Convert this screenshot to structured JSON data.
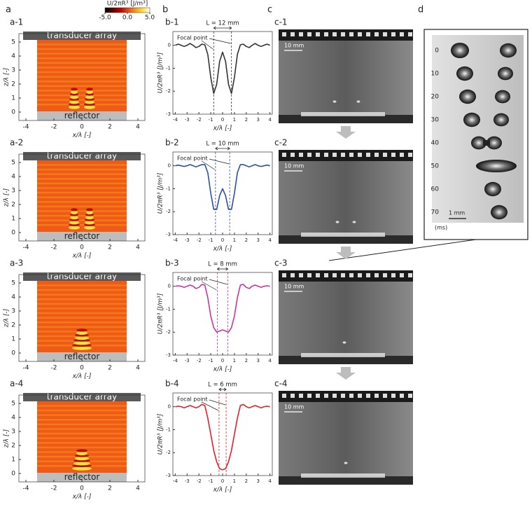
{
  "panel_letters": [
    "a",
    "b",
    "c",
    "d"
  ],
  "colorbar": {
    "label": "U/2πR³ [J/m³]",
    "lim": [
      -5,
      5
    ],
    "ticks": [
      {
        "value": -5,
        "label": "-5.0"
      },
      {
        "value": 0,
        "label": "0.0"
      },
      {
        "value": 5,
        "label": "5.0"
      }
    ]
  },
  "field_maps": [
    {
      "label": "a-1",
      "top_label": "transducer array",
      "bottom_label": "reflector",
      "xlabel": "x/λ [-]",
      "ylabel": "z/λ [-]",
      "xlim": [
        -4.5,
        4.5
      ],
      "ylim": [
        -0.6,
        5.6
      ],
      "xticks": [
        -4,
        -2,
        0,
        2,
        4
      ],
      "yticks": [
        0,
        1,
        2,
        3,
        4,
        5
      ]
    },
    {
      "label": "a-2",
      "top_label": "transducer array",
      "bottom_label": "reflector",
      "xlabel": "x/λ [-]",
      "ylabel": "z/λ [-]",
      "xlim": [
        -4.5,
        4.5
      ],
      "ylim": [
        -0.6,
        5.6
      ],
      "xticks": [
        -4,
        -2,
        0,
        2,
        4
      ],
      "yticks": [
        0,
        1,
        2,
        3,
        4,
        5
      ]
    },
    {
      "label": "a-3",
      "top_label": "transducer array",
      "bottom_label": "reflector",
      "xlabel": "x/λ [-]",
      "ylabel": "z/λ [-]",
      "xlim": [
        -4.5,
        4.5
      ],
      "ylim": [
        -0.6,
        5.6
      ],
      "xticks": [
        -4,
        -2,
        0,
        2,
        4
      ],
      "yticks": [
        0,
        1,
        2,
        3,
        4,
        5
      ]
    },
    {
      "label": "a-4",
      "top_label": "transducer array",
      "bottom_label": "reflector",
      "xlabel": "x/λ [-]",
      "ylabel": "z/λ [-]",
      "xlim": [
        -4.5,
        4.5
      ],
      "ylim": [
        -0.6,
        5.6
      ],
      "xticks": [
        -4,
        -2,
        0,
        2,
        4
      ],
      "yticks": [
        0,
        1,
        2,
        3,
        4,
        5
      ]
    }
  ],
  "chart_data": [
    {
      "type": "line",
      "label": "b-1",
      "xlabel": "x/λ [-]",
      "ylabel": "U/2πR³ [J/m³]",
      "length_label": "L = 12 mm",
      "focal_label": "Focal point",
      "focal_lines": [
        -0.75,
        0.75
      ],
      "color": "#333333",
      "x": [
        -4,
        -3.75,
        -3.5,
        -3.25,
        -3,
        -2.75,
        -2.5,
        -2.25,
        -2,
        -1.75,
        -1.5,
        -1.25,
        -1,
        -0.75,
        -0.5,
        -0.25,
        0,
        0.25,
        0.5,
        0.75,
        1,
        1.25,
        1.5,
        1.75,
        2,
        2.25,
        2.5,
        2.75,
        3,
        3.25,
        3.5,
        3.75,
        4
      ],
      "values": [
        0,
        0.05,
        0,
        -0.05,
        0,
        0.08,
        0,
        -0.1,
        -0.05,
        0.05,
        0.02,
        -0.4,
        -1.4,
        -2.1,
        -1.7,
        -0.7,
        -0.3,
        -0.7,
        -1.7,
        -2.1,
        -1.4,
        -0.4,
        0.02,
        0.05,
        -0.05,
        -0.1,
        0,
        0.08,
        0,
        -0.05,
        0,
        0.05,
        0
      ],
      "xlim": [
        -4.2,
        4.2
      ],
      "ylim": [
        -3,
        0.6
      ],
      "xticks": [
        -4,
        -3,
        -2,
        -1,
        0,
        1,
        2,
        3,
        4
      ],
      "yticks": [
        0,
        -1,
        -2,
        -3
      ]
    },
    {
      "type": "line",
      "label": "b-2",
      "xlabel": "x/λ [-]",
      "ylabel": "U/2πR³ [J/m³]",
      "length_label": "L = 10 mm",
      "focal_label": "Focal point",
      "focal_lines": [
        -0.6,
        0.6
      ],
      "color": "#2e4fa0",
      "x": [
        -4,
        -3.75,
        -3.5,
        -3.25,
        -3,
        -2.75,
        -2.5,
        -2.25,
        -2,
        -1.75,
        -1.5,
        -1.25,
        -1,
        -0.75,
        -0.5,
        -0.25,
        0,
        0.25,
        0.5,
        0.75,
        1,
        1.25,
        1.5,
        1.75,
        2,
        2.25,
        2.5,
        2.75,
        3,
        3.25,
        3.5,
        3.75,
        4
      ],
      "values": [
        0,
        0.03,
        0,
        -0.03,
        0,
        0.05,
        0,
        -0.05,
        0,
        0.05,
        0.05,
        -0.3,
        -1.2,
        -1.9,
        -1.9,
        -1.3,
        -1,
        -1.3,
        -1.9,
        -1.9,
        -1.2,
        -0.3,
        0.05,
        0.05,
        0,
        -0.05,
        0,
        0.05,
        0,
        -0.03,
        0,
        0.03,
        0
      ],
      "xlim": [
        -4.2,
        4.2
      ],
      "ylim": [
        -3,
        0.6
      ],
      "xticks": [
        -4,
        -3,
        -2,
        -1,
        0,
        1,
        2,
        3,
        4
      ],
      "yticks": [
        0,
        -1,
        -2,
        -3
      ]
    },
    {
      "type": "line",
      "label": "b-3",
      "xlabel": "x/λ [-]",
      "ylabel": "U/2πR³ [J/m³]",
      "length_label": "L = 8 mm",
      "focal_label": "Focal point",
      "focal_lines": [
        -0.45,
        0.45
      ],
      "color": "#cc3399",
      "x": [
        -4,
        -3.75,
        -3.5,
        -3.25,
        -3,
        -2.75,
        -2.5,
        -2.25,
        -2,
        -1.75,
        -1.5,
        -1.25,
        -1,
        -0.75,
        -0.5,
        -0.25,
        0,
        0.25,
        0.5,
        0.75,
        1,
        1.25,
        1.5,
        1.75,
        2,
        2.25,
        2.5,
        2.75,
        3,
        3.25,
        3.5,
        3.75,
        4
      ],
      "values": [
        0,
        0.02,
        0,
        -0.05,
        0,
        0.05,
        0,
        -0.1,
        -0.05,
        0.08,
        0.05,
        -0.5,
        -1.3,
        -1.8,
        -2,
        -1.95,
        -1.9,
        -1.95,
        -2,
        -1.8,
        -1.3,
        -0.5,
        0.05,
        0.08,
        -0.05,
        -0.1,
        0,
        0.05,
        0,
        -0.05,
        0,
        0.02,
        0
      ],
      "xlim": [
        -4.2,
        4.2
      ],
      "ylim": [
        -3,
        0.6
      ],
      "xticks": [
        -4,
        -3,
        -2,
        -1,
        0,
        1,
        2,
        3,
        4
      ],
      "yticks": [
        0,
        -1,
        -2,
        -3
      ]
    },
    {
      "type": "line",
      "label": "b-4",
      "xlabel": "x/λ [-]",
      "ylabel": "U/2πR³ [J/m³]",
      "length_label": "L = 6 mm",
      "focal_label": "Focal point",
      "focal_lines": [
        -0.3,
        0.3
      ],
      "color": "#e0202a",
      "x": [
        -4,
        -3.75,
        -3.5,
        -3.25,
        -3,
        -2.75,
        -2.5,
        -2.25,
        -2,
        -1.75,
        -1.5,
        -1.25,
        -1,
        -0.75,
        -0.5,
        -0.25,
        0,
        0.25,
        0.5,
        0.75,
        1,
        1.25,
        1.5,
        1.75,
        2,
        2.25,
        2.5,
        2.75,
        3,
        3.25,
        3.5,
        3.75,
        4
      ],
      "values": [
        0,
        0.02,
        0,
        -0.05,
        0,
        0.05,
        0,
        -0.05,
        0,
        0.1,
        0.05,
        -0.5,
        -1.2,
        -1.9,
        -2.4,
        -2.7,
        -2.75,
        -2.7,
        -2.4,
        -1.9,
        -1.2,
        -0.5,
        0.05,
        0.1,
        0,
        -0.05,
        0,
        0.05,
        0,
        -0.05,
        0,
        0.02,
        0
      ],
      "xlim": [
        -4.2,
        4.2
      ],
      "ylim": [
        -3,
        0.6
      ],
      "xticks": [
        -4,
        -3,
        -2,
        -1,
        0,
        1,
        2,
        3,
        4
      ],
      "yticks": [
        0,
        -1,
        -2,
        -3
      ]
    }
  ],
  "photos": [
    {
      "label": "c-1",
      "scale": "10 mm"
    },
    {
      "label": "c-2",
      "scale": "10 mm"
    },
    {
      "label": "c-3",
      "scale": "10 mm"
    },
    {
      "label": "c-4",
      "scale": "10 mm"
    }
  ],
  "sequence": {
    "times": [
      0,
      10,
      20,
      30,
      40,
      50,
      60,
      70
    ],
    "unit": "(ms)",
    "scale": "1 mm"
  }
}
